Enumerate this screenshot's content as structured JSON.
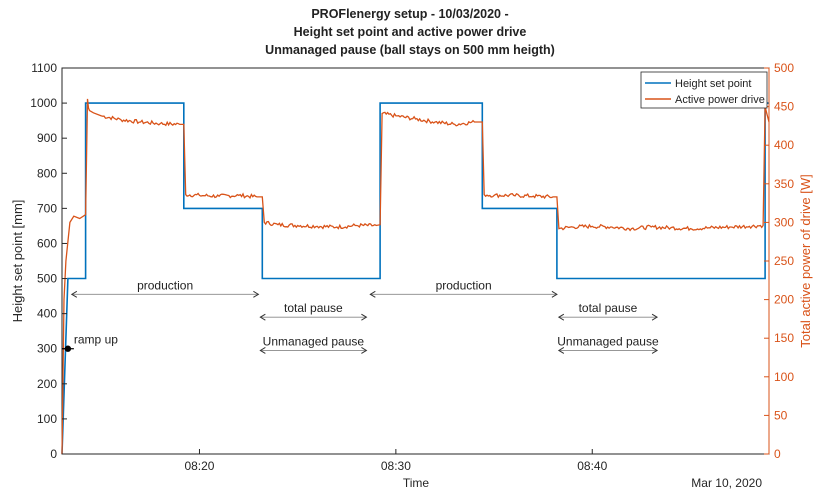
{
  "chart_data": {
    "type": "line",
    "title": [
      "PROFlenergy setup  - 10/03/2020 -",
      "Height set point and active power drive",
      "Unmanaged pause (ball stays on 500 mm heigth)"
    ],
    "xlabel": "Time",
    "date_label": "Mar 10, 2020",
    "x_unit": "minutes after 08:00",
    "xlim": [
      13.0,
      49.0
    ],
    "x_ticks": [
      {
        "value": 20,
        "label": "08:20"
      },
      {
        "value": 30,
        "label": "08:30"
      },
      {
        "value": 40,
        "label": "08:40"
      }
    ],
    "y_left": {
      "label": "Height set point [mm]",
      "ylim": [
        0,
        1100
      ],
      "ticks": [
        0,
        100,
        200,
        300,
        400,
        500,
        600,
        700,
        800,
        900,
        1000,
        1100
      ],
      "color": "#262626"
    },
    "y_right": {
      "label": "Total active power of drive [W]",
      "ylim": [
        0,
        500
      ],
      "ticks": [
        0,
        50,
        100,
        150,
        200,
        250,
        300,
        350,
        400,
        450,
        500
      ],
      "color": "#D95319"
    },
    "grid": false,
    "legend_position": "top-right",
    "series": [
      {
        "name": "Height set point",
        "axis": "left",
        "color": "#0072BD",
        "x": [
          13.0,
          13.3,
          13.4,
          14.2,
          14.2,
          19.2,
          19.2,
          23.2,
          23.2,
          29.2,
          29.2,
          34.4,
          34.4,
          38.2,
          38.2,
          48.8,
          48.8,
          49.0
        ],
        "y": [
          0,
          500,
          500,
          500,
          1000,
          1000,
          700,
          700,
          500,
          500,
          1000,
          1000,
          700,
          700,
          500,
          500,
          1000,
          1000
        ]
      },
      {
        "name": "Active power drive",
        "axis": "right",
        "color": "#D95319",
        "x": [
          13.0,
          13.1,
          13.2,
          13.4,
          13.6,
          13.9,
          14.2,
          14.3,
          14.35,
          14.4,
          14.6,
          15.0,
          16.0,
          17.0,
          18.0,
          19.0,
          19.2,
          19.3,
          20.0,
          21.0,
          22.0,
          23.0,
          23.2,
          23.3,
          24.0,
          25.0,
          26.0,
          27.0,
          28.0,
          29.0,
          29.2,
          29.3,
          30.0,
          31.0,
          32.0,
          33.0,
          34.0,
          34.4,
          34.5,
          35.0,
          36.0,
          37.0,
          38.0,
          38.2,
          38.3,
          39.0,
          40.0,
          41.0,
          42.0,
          43.0,
          44.0,
          45.0,
          46.0,
          47.0,
          48.0,
          48.7,
          48.8,
          48.9,
          49.0
        ],
        "y": [
          0,
          200,
          250,
          300,
          308,
          305,
          310,
          460,
          448,
          445,
          442,
          438,
          433,
          430,
          428,
          427,
          427,
          336,
          335,
          334,
          335,
          333,
          333,
          300,
          297,
          296,
          295,
          294,
          296,
          296,
          297,
          441,
          438,
          434,
          430,
          427,
          430,
          430,
          336,
          335,
          335,
          334,
          333,
          333,
          292,
          294,
          295,
          294,
          292,
          294,
          293,
          292,
          293,
          294,
          295,
          296,
          450,
          440,
          430
        ]
      }
    ],
    "annotations": {
      "ramp_up": {
        "label": "ramp up",
        "x": 13.3,
        "y": 300
      },
      "spans": [
        {
          "label": "production",
          "x_start": 13.5,
          "x_end": 23.0,
          "y": 455
        },
        {
          "label": "total pause",
          "x_start": 23.1,
          "x_end": 28.5,
          "y": 390
        },
        {
          "label": "production",
          "x_start": 28.7,
          "x_end": 38.2,
          "y": 455
        },
        {
          "label": "total pause",
          "x_start": 38.3,
          "x_end": 43.3,
          "y": 390
        },
        {
          "label": "Unmanaged pause",
          "x_start": 23.1,
          "x_end": 28.5,
          "y": 295
        },
        {
          "label": "Unmanaged pause",
          "x_start": 38.3,
          "x_end": 43.3,
          "y": 295
        }
      ]
    }
  }
}
